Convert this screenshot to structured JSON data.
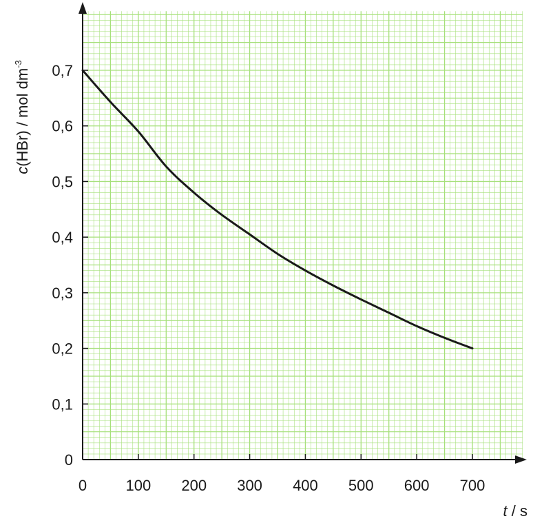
{
  "chart_data": {
    "type": "line",
    "title": "",
    "xlabel": {
      "symbol": "t",
      "unit": " / s"
    },
    "ylabel": {
      "symbol": "c",
      "species": "(HBr) / mol dm",
      "exponent": "-3"
    },
    "xlim": [
      0,
      790
    ],
    "ylim": [
      0,
      0.8
    ],
    "x_ticks": [
      0,
      100,
      200,
      300,
      400,
      500,
      600,
      700
    ],
    "x_tick_labels": [
      "0",
      "100",
      "200",
      "300",
      "400",
      "500",
      "600",
      "700"
    ],
    "y_ticks": [
      0,
      0.1,
      0.2,
      0.3,
      0.4,
      0.5,
      0.6,
      0.7
    ],
    "y_tick_labels": [
      "0",
      "0,1",
      "0,2",
      "0,3",
      "0,4",
      "0,5",
      "0,6",
      "0,7"
    ],
    "grid": true,
    "grid_color": "#a6e07a",
    "line_color": "#1a1a1a",
    "series": [
      {
        "x": [
          0,
          50,
          100,
          150,
          200,
          250,
          300,
          350,
          400,
          450,
          500,
          550,
          600,
          650,
          700
        ],
        "y": [
          0.7,
          0.643,
          0.59,
          0.527,
          0.48,
          0.44,
          0.405,
          0.37,
          0.34,
          0.313,
          0.288,
          0.264,
          0.24,
          0.219,
          0.2
        ]
      }
    ]
  }
}
